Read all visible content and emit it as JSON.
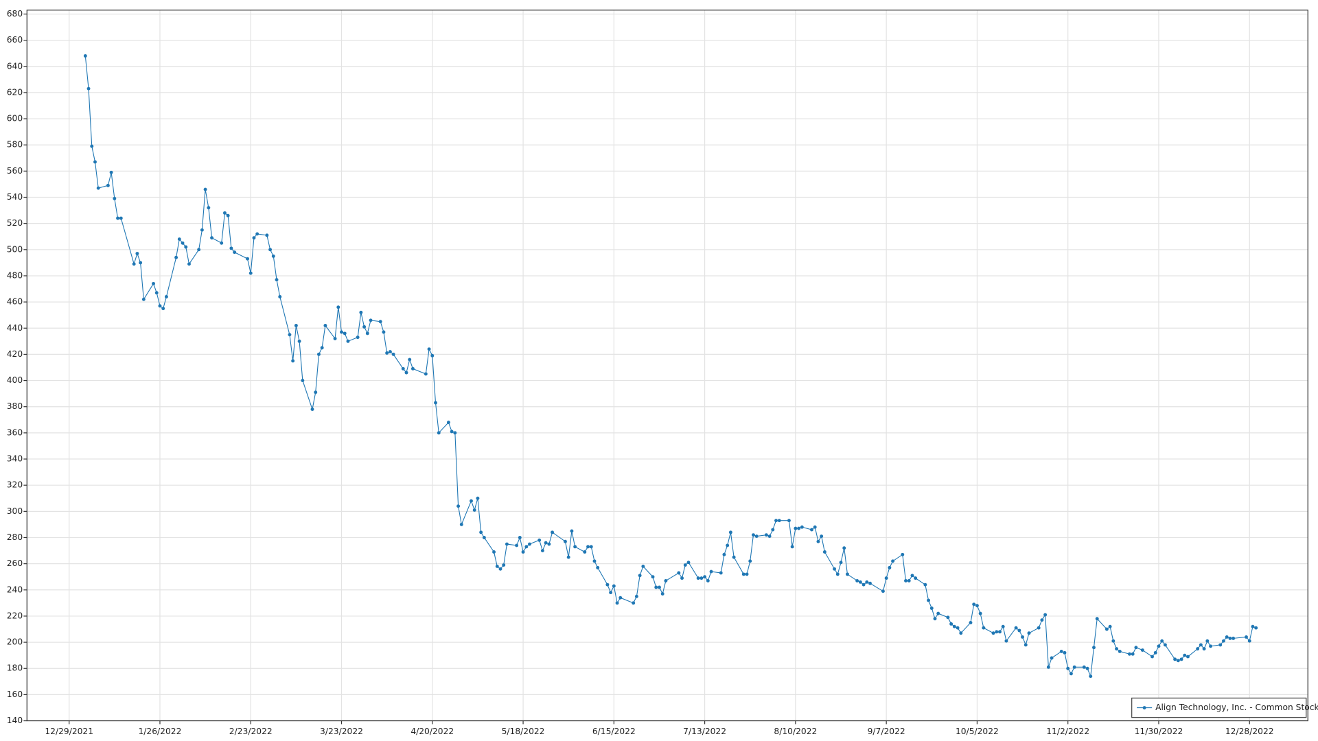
{
  "chart_data": {
    "type": "line",
    "xlim": [
      "12/16/2021",
      "1/15/2023"
    ],
    "xticks": [
      "12/29/2021",
      "1/26/2022",
      "2/23/2022",
      "3/23/2022",
      "4/20/2022",
      "5/18/2022",
      "6/15/2022",
      "7/13/2022",
      "8/10/2022",
      "9/7/2022",
      "10/5/2022",
      "11/2/2022",
      "11/30/2022",
      "12/28/2022"
    ],
    "ylim": [
      140,
      683
    ],
    "yticks": [
      140,
      160,
      180,
      200,
      220,
      240,
      260,
      280,
      300,
      320,
      340,
      360,
      380,
      400,
      420,
      440,
      460,
      480,
      500,
      520,
      540,
      560,
      580,
      600,
      620,
      640,
      660,
      680
    ],
    "grid": true,
    "legend": "bottom-right",
    "x": [
      "1/3/2022",
      "1/4/2022",
      "1/5/2022",
      "1/6/2022",
      "1/7/2022",
      "1/10/2022",
      "1/11/2022",
      "1/12/2022",
      "1/13/2022",
      "1/14/2022",
      "1/18/2022",
      "1/19/2022",
      "1/20/2022",
      "1/21/2022",
      "1/24/2022",
      "1/25/2022",
      "1/26/2022",
      "1/27/2022",
      "1/28/2022",
      "1/31/2022",
      "2/1/2022",
      "2/2/2022",
      "2/3/2022",
      "2/4/2022",
      "2/7/2022",
      "2/8/2022",
      "2/9/2022",
      "2/10/2022",
      "2/11/2022",
      "2/14/2022",
      "2/15/2022",
      "2/16/2022",
      "2/17/2022",
      "2/18/2022",
      "2/22/2022",
      "2/23/2022",
      "2/24/2022",
      "2/25/2022",
      "2/28/2022",
      "3/1/2022",
      "3/2/2022",
      "3/3/2022",
      "3/4/2022",
      "3/7/2022",
      "3/8/2022",
      "3/9/2022",
      "3/10/2022",
      "3/11/2022",
      "3/14/2022",
      "3/15/2022",
      "3/16/2022",
      "3/17/2022",
      "3/18/2022",
      "3/21/2022",
      "3/22/2022",
      "3/23/2022",
      "3/24/2022",
      "3/25/2022",
      "3/28/2022",
      "3/29/2022",
      "3/30/2022",
      "3/31/2022",
      "4/1/2022",
      "4/4/2022",
      "4/5/2022",
      "4/6/2022",
      "4/7/2022",
      "4/8/2022",
      "4/11/2022",
      "4/12/2022",
      "4/13/2022",
      "4/14/2022",
      "4/18/2022",
      "4/19/2022",
      "4/20/2022",
      "4/21/2022",
      "4/22/2022",
      "4/25/2022",
      "4/26/2022",
      "4/27/2022",
      "4/28/2022",
      "4/29/2022",
      "5/2/2022",
      "5/3/2022",
      "5/4/2022",
      "5/5/2022",
      "5/6/2022",
      "5/9/2022",
      "5/10/2022",
      "5/11/2022",
      "5/12/2022",
      "5/13/2022",
      "5/16/2022",
      "5/17/2022",
      "5/18/2022",
      "5/19/2022",
      "5/20/2022",
      "5/23/2022",
      "5/24/2022",
      "5/25/2022",
      "5/26/2022",
      "5/27/2022",
      "5/31/2022",
      "6/1/2022",
      "6/2/2022",
      "6/3/2022",
      "6/6/2022",
      "6/7/2022",
      "6/8/2022",
      "6/9/2022",
      "6/10/2022",
      "6/13/2022",
      "6/14/2022",
      "6/15/2022",
      "6/16/2022",
      "6/17/2022",
      "6/21/2022",
      "6/22/2022",
      "6/23/2022",
      "6/24/2022",
      "6/27/2022",
      "6/28/2022",
      "6/29/2022",
      "6/30/2022",
      "7/1/2022",
      "7/5/2022",
      "7/6/2022",
      "7/7/2022",
      "7/8/2022",
      "7/11/2022",
      "7/12/2022",
      "7/13/2022",
      "7/14/2022",
      "7/15/2022",
      "7/18/2022",
      "7/19/2022",
      "7/20/2022",
      "7/21/2022",
      "7/22/2022",
      "7/25/2022",
      "7/26/2022",
      "7/27/2022",
      "7/28/2022",
      "7/29/2022",
      "8/1/2022",
      "8/2/2022",
      "8/3/2022",
      "8/4/2022",
      "8/5/2022",
      "8/8/2022",
      "8/9/2022",
      "8/10/2022",
      "8/11/2022",
      "8/12/2022",
      "8/15/2022",
      "8/16/2022",
      "8/17/2022",
      "8/18/2022",
      "8/19/2022",
      "8/22/2022",
      "8/23/2022",
      "8/24/2022",
      "8/25/2022",
      "8/26/2022",
      "8/29/2022",
      "8/30/2022",
      "8/31/2022",
      "9/1/2022",
      "9/2/2022",
      "9/6/2022",
      "9/7/2022",
      "9/8/2022",
      "9/9/2022",
      "9/12/2022",
      "9/13/2022",
      "9/14/2022",
      "9/15/2022",
      "9/16/2022",
      "9/19/2022",
      "9/20/2022",
      "9/21/2022",
      "9/22/2022",
      "9/23/2022",
      "9/26/2022",
      "9/27/2022",
      "9/28/2022",
      "9/29/2022",
      "9/30/2022",
      "10/3/2022",
      "10/4/2022",
      "10/5/2022",
      "10/6/2022",
      "10/7/2022",
      "10/10/2022",
      "10/11/2022",
      "10/12/2022",
      "10/13/2022",
      "10/14/2022",
      "10/17/2022",
      "10/18/2022",
      "10/19/2022",
      "10/20/2022",
      "10/21/2022",
      "10/24/2022",
      "10/25/2022",
      "10/26/2022",
      "10/27/2022",
      "10/28/2022",
      "10/31/2022",
      "11/1/2022",
      "11/2/2022",
      "11/3/2022",
      "11/4/2022",
      "11/7/2022",
      "11/8/2022",
      "11/9/2022",
      "11/10/2022",
      "11/11/2022",
      "11/14/2022",
      "11/15/2022",
      "11/16/2022",
      "11/17/2022",
      "11/18/2022",
      "11/21/2022",
      "11/22/2022",
      "11/23/2022",
      "11/25/2022",
      "11/28/2022",
      "11/29/2022",
      "11/30/2022",
      "12/1/2022",
      "12/2/2022",
      "12/5/2022",
      "12/6/2022",
      "12/7/2022",
      "12/8/2022",
      "12/9/2022",
      "12/12/2022",
      "12/13/2022",
      "12/14/2022",
      "12/15/2022",
      "12/16/2022",
      "12/19/2022",
      "12/20/2022",
      "12/21/2022",
      "12/22/2022",
      "12/23/2022",
      "12/27/2022",
      "12/28/2022",
      "12/29/2022",
      "12/30/2022"
    ],
    "series": [
      {
        "name": "Align Technology, Inc. - Common Stock",
        "color": "#1f77b4",
        "values": [
          648,
          623,
          579,
          567,
          547,
          549,
          559,
          539,
          524,
          524,
          489,
          497,
          490,
          462,
          474,
          467,
          457,
          455,
          464,
          494,
          508,
          505,
          502,
          489,
          500,
          515,
          546,
          532,
          509,
          505,
          528,
          526,
          501,
          498,
          493,
          482,
          509,
          512,
          511,
          500,
          495,
          477,
          464,
          435,
          415,
          442,
          430,
          400,
          378,
          391,
          420,
          425,
          442,
          432,
          456,
          437,
          436,
          430,
          433,
          452,
          441,
          436,
          446,
          445,
          437,
          421,
          422,
          420,
          409,
          406,
          416,
          409,
          405,
          424,
          419,
          383,
          360,
          368,
          361,
          360,
          304,
          290,
          308,
          301,
          310,
          284,
          280,
          269,
          258,
          256,
          259,
          275,
          274,
          280,
          269,
          273,
          275,
          278,
          270,
          276,
          275,
          284,
          277,
          265,
          285,
          273,
          269,
          273,
          273,
          262,
          257,
          244,
          238,
          243,
          230,
          234,
          230,
          235,
          251,
          258,
          250,
          242,
          242,
          237,
          247,
          253,
          249,
          259,
          261,
          249,
          249,
          250,
          247,
          254,
          253,
          267,
          274,
          284,
          265,
          252,
          252,
          262,
          282,
          281,
          282,
          281,
          286,
          293,
          293,
          293,
          273,
          287,
          287,
          288,
          286,
          288,
          277,
          281,
          269,
          256,
          252,
          261,
          272,
          252,
          247,
          246,
          244,
          246,
          245,
          239,
          249,
          257,
          262,
          267,
          247,
          247,
          251,
          249,
          244,
          232,
          226,
          218,
          222,
          219,
          214,
          212,
          211,
          207,
          215,
          229,
          228,
          222,
          211,
          207,
          208,
          208,
          212,
          201,
          211,
          209,
          204,
          198,
          207,
          211,
          217,
          221,
          181,
          188,
          193,
          192,
          180,
          176,
          181,
          181,
          180,
          174,
          196,
          218,
          210,
          212,
          201,
          195,
          193,
          191,
          191,
          196,
          194,
          189,
          192,
          197,
          201,
          198,
          187,
          186,
          187,
          190,
          189,
          195,
          198,
          195,
          201,
          197,
          198,
          201,
          204,
          203,
          203,
          204,
          201,
          212,
          211
        ]
      }
    ]
  }
}
